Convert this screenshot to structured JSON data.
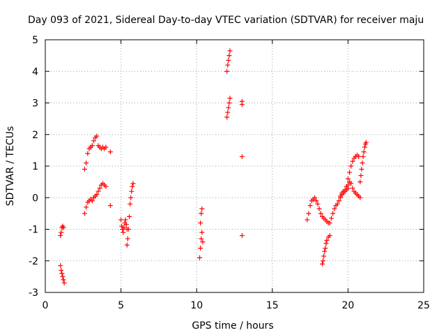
{
  "chart_data": {
    "type": "scatter",
    "title": "Day 093 of 2021, Sidereal Day-to-day VTEC variation (SDTVAR) for receiver maju",
    "xlabel": "GPS time / hours",
    "ylabel": "SDTVAR / TECUs",
    "xlim": [
      0,
      25
    ],
    "ylim": [
      -3,
      5
    ],
    "xticks": [
      0,
      5,
      10,
      15,
      20,
      25
    ],
    "yticks": [
      -3,
      -2,
      -1,
      0,
      1,
      2,
      3,
      4,
      5
    ],
    "grid": true,
    "marker": "+",
    "color": "#ff0000",
    "segments": [
      {
        "x": [
          1.0,
          1.05,
          1.1,
          1.15,
          1.2,
          1.25
        ],
        "y": [
          -2.15,
          -2.3,
          -2.4,
          -2.5,
          -2.6,
          -2.7
        ]
      },
      {
        "x": [
          1.0,
          1.05,
          1.1,
          1.15,
          1.2
        ],
        "y": [
          -1.2,
          -1.1,
          -0.95,
          -0.9,
          -0.95
        ]
      },
      {
        "x": [
          2.6,
          2.7,
          2.8,
          2.9,
          3.0,
          3.1,
          3.2,
          3.3,
          3.4,
          3.5,
          3.6,
          3.7,
          3.8,
          3.9,
          4.0
        ],
        "y": [
          0.9,
          1.1,
          1.4,
          1.55,
          1.6,
          1.65,
          1.8,
          1.9,
          1.95,
          1.65,
          1.6,
          1.55,
          1.6,
          1.55,
          1.6
        ]
      },
      {
        "x": [
          4.3
        ],
        "y": [
          1.45
        ]
      },
      {
        "x": [
          2.6,
          2.7,
          2.8,
          2.9,
          3.0,
          3.1,
          3.2,
          3.3,
          3.4,
          3.5,
          3.6,
          3.7,
          3.8,
          3.9,
          4.0
        ],
        "y": [
          -0.5,
          -0.3,
          -0.15,
          -0.1,
          -0.05,
          -0.1,
          0.0,
          0.05,
          0.1,
          0.2,
          0.3,
          0.4,
          0.45,
          0.4,
          0.35
        ]
      },
      {
        "x": [
          4.3
        ],
        "y": [
          -0.25
        ]
      },
      {
        "x": [
          5.0,
          5.05,
          5.1,
          5.15,
          5.2,
          5.25,
          5.3,
          5.35,
          5.4
        ],
        "y": [
          -0.7,
          -0.9,
          -1.0,
          -1.1,
          -0.95,
          -0.8,
          -0.7,
          -0.85,
          -1.0
        ]
      },
      {
        "x": [
          5.4,
          5.45,
          5.5,
          5.55,
          5.6,
          5.65,
          5.7,
          5.75,
          5.8
        ],
        "y": [
          -1.5,
          -1.3,
          -1.0,
          -0.6,
          -0.2,
          0.0,
          0.2,
          0.35,
          0.45
        ]
      },
      {
        "x": [
          10.2,
          10.25,
          10.3,
          10.35,
          10.4
        ],
        "y": [
          -1.9,
          -1.6,
          -1.3,
          -1.1,
          -1.4
        ]
      },
      {
        "x": [
          10.25,
          10.3,
          10.35
        ],
        "y": [
          -0.8,
          -0.5,
          -0.35
        ]
      },
      {
        "x": [
          12.0,
          12.05,
          12.1,
          12.15,
          12.2
        ],
        "y": [
          4.0,
          4.2,
          4.35,
          4.5,
          4.65
        ]
      },
      {
        "x": [
          12.0,
          12.05,
          12.1,
          12.15,
          12.2
        ],
        "y": [
          2.55,
          2.7,
          2.85,
          3.0,
          3.15
        ]
      },
      {
        "x": [
          13.0,
          13.0
        ],
        "y": [
          3.05,
          2.95
        ]
      },
      {
        "x": [
          13.0
        ],
        "y": [
          1.3
        ]
      },
      {
        "x": [
          13.0
        ],
        "y": [
          -1.2
        ]
      },
      {
        "x": [
          17.3,
          17.4,
          17.5,
          17.6,
          17.7,
          17.8,
          17.9,
          18.0,
          18.1,
          18.2,
          18.3,
          18.4,
          18.5,
          18.6,
          18.7
        ],
        "y": [
          -0.7,
          -0.5,
          -0.25,
          -0.1,
          -0.05,
          0.0,
          -0.1,
          -0.2,
          -0.35,
          -0.5,
          -0.6,
          -0.65,
          -0.7,
          -0.75,
          -0.8
        ]
      },
      {
        "x": [
          18.3,
          18.35,
          18.4,
          18.45,
          18.5,
          18.55,
          18.6,
          18.7,
          18.8
        ],
        "y": [
          -2.1,
          -2.0,
          -1.85,
          -1.7,
          -1.6,
          -1.45,
          -1.35,
          -1.25,
          -1.2
        ]
      },
      {
        "x": [
          18.8,
          18.9,
          19.0,
          19.1,
          19.2,
          19.3,
          19.4,
          19.5,
          19.6,
          19.7,
          19.8,
          19.9,
          20.0
        ],
        "y": [
          -0.8,
          -0.65,
          -0.5,
          -0.35,
          -0.25,
          -0.2,
          -0.1,
          0.0,
          0.1,
          0.15,
          0.2,
          0.25,
          0.3
        ]
      },
      {
        "x": [
          19.5,
          19.6,
          19.7,
          19.8,
          19.9,
          20.0,
          20.1,
          20.2,
          20.3,
          20.4,
          20.5,
          20.6,
          20.7,
          20.8
        ],
        "y": [
          0.05,
          0.15,
          0.2,
          0.25,
          0.35,
          0.4,
          0.5,
          0.45,
          0.3,
          0.2,
          0.15,
          0.1,
          0.05,
          0.0
        ]
      },
      {
        "x": [
          20.0,
          20.1,
          20.2,
          20.3,
          20.4,
          20.5,
          20.6,
          20.7
        ],
        "y": [
          0.6,
          0.8,
          1.0,
          1.15,
          1.25,
          1.3,
          1.35,
          1.3
        ]
      },
      {
        "x": [
          20.8,
          20.85,
          20.9,
          20.95,
          21.0,
          21.05,
          21.1,
          21.15,
          21.2
        ],
        "y": [
          0.5,
          0.7,
          0.9,
          1.1,
          1.3,
          1.45,
          1.6,
          1.7,
          1.75
        ]
      }
    ]
  }
}
